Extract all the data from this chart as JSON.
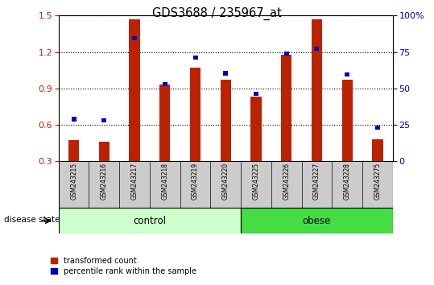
{
  "title": "GDS3688 / 235967_at",
  "samples": [
    "GSM243215",
    "GSM243216",
    "GSM243217",
    "GSM243218",
    "GSM243219",
    "GSM243220",
    "GSM243225",
    "GSM243226",
    "GSM243227",
    "GSM243228",
    "GSM243275"
  ],
  "transformed_count": [
    0.47,
    0.46,
    1.47,
    0.93,
    1.07,
    0.97,
    0.83,
    1.18,
    1.47,
    0.97,
    0.48
  ],
  "percentile_rank": [
    0.645,
    0.635,
    1.315,
    0.935,
    1.155,
    1.025,
    0.855,
    1.185,
    1.225,
    1.015,
    0.575
  ],
  "groups": {
    "control": 6,
    "obese": 5
  },
  "ylim": [
    0.3,
    1.5
  ],
  "yticks_left": [
    0.3,
    0.6,
    0.9,
    1.2,
    1.5
  ],
  "yticks_right": [
    0,
    25,
    50,
    75,
    100
  ],
  "bar_color": "#bb2200",
  "dot_color": "#0000bb",
  "control_color": "#ccffcc",
  "obese_color": "#44dd44",
  "grid_color": "#000000",
  "sample_bg_color": "#cccccc",
  "legend_red": "transformed count",
  "legend_blue": "percentile rank within the sample",
  "label_control": "control",
  "label_obese": "obese",
  "disease_state_label": "disease state"
}
